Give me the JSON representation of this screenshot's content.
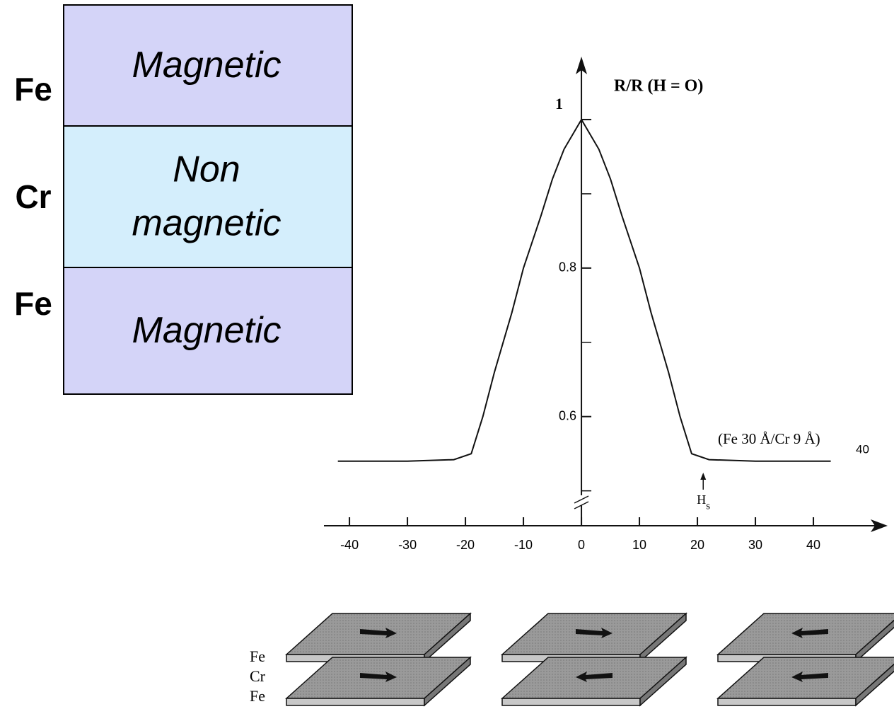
{
  "layers": [
    {
      "element": "Fe",
      "label_lines": [
        "Magnetic"
      ]
    },
    {
      "element": "Cr",
      "label_lines": [
        "Non",
        "magnetic"
      ]
    },
    {
      "element": "Fe",
      "label_lines": [
        "Magnetic"
      ]
    }
  ],
  "chart_data": {
    "type": "line",
    "y_axis_label": "R/R (H = O)",
    "sample_label": "(Fe 30 Å/Cr 9 Å)",
    "sample_subscript": "40",
    "field_label": "H",
    "field_subscript": "s",
    "x": [
      -42,
      -30,
      -22,
      -19,
      -17,
      -15,
      -12,
      -10,
      -7,
      -5,
      -3,
      0,
      3,
      5,
      7,
      10,
      12,
      15,
      17,
      19,
      22,
      30,
      43
    ],
    "values": [
      0.54,
      0.54,
      0.542,
      0.55,
      0.6,
      0.66,
      0.74,
      0.8,
      0.87,
      0.92,
      0.96,
      1,
      0.96,
      0.92,
      0.87,
      0.8,
      0.74,
      0.66,
      0.6,
      0.55,
      0.542,
      0.54,
      0.54
    ],
    "color": "#111111",
    "xlim": [
      -44.4,
      52.8
    ],
    "ylim": [
      0.453,
      1.08
    ],
    "xticks": [
      -40,
      -30,
      -20,
      -10,
      0,
      10,
      20,
      30,
      40
    ],
    "yticks": [
      0.6,
      0.8,
      1
    ],
    "yminor": [
      0.5,
      0.7,
      0.9
    ],
    "field_marker": 21
  },
  "plates": {
    "labels": [
      "Fe",
      "Cr",
      "Fe"
    ]
  }
}
